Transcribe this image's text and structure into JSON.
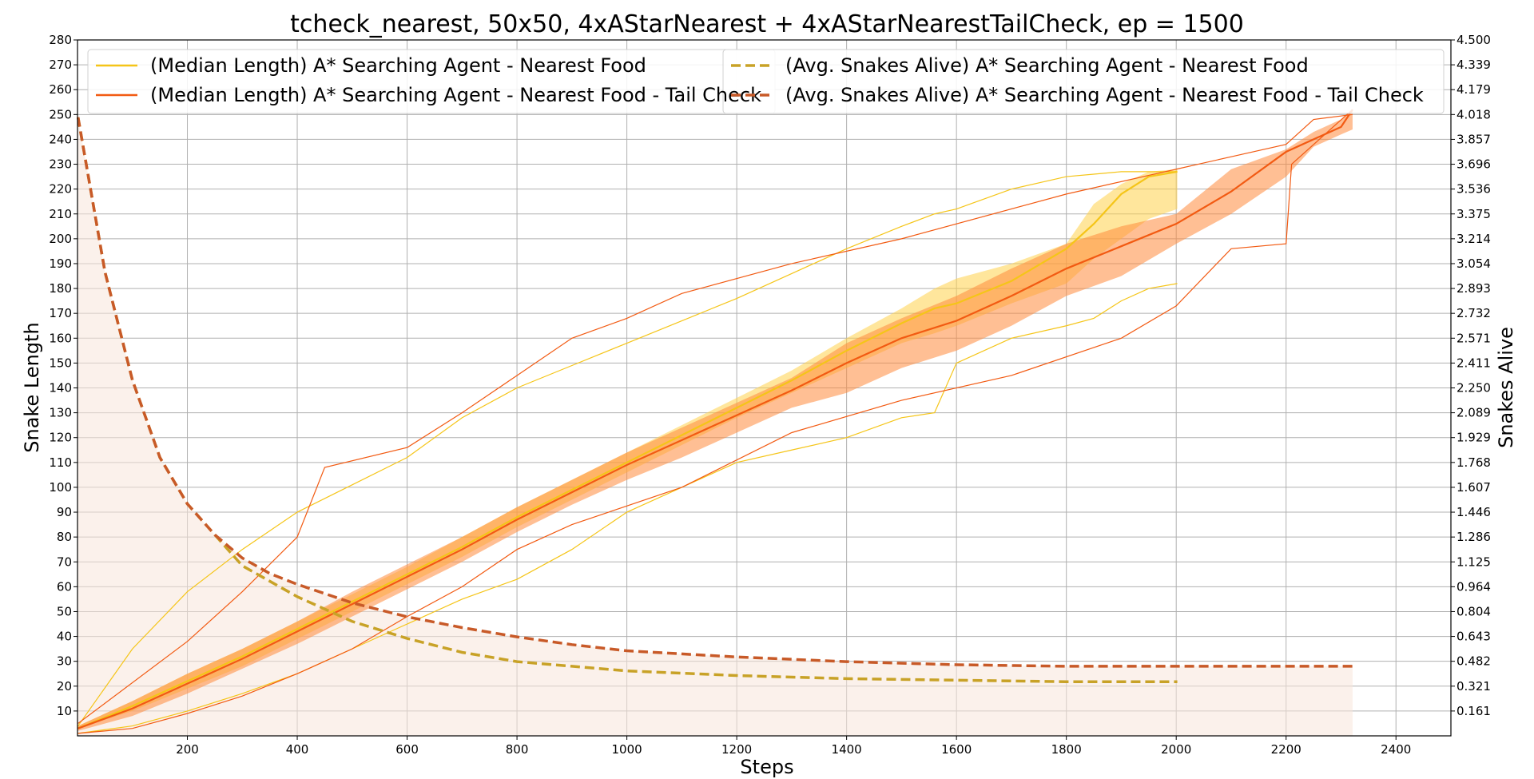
{
  "chart_data": {
    "type": "line",
    "title": "tcheck_nearest, 50x50, 4xAStarNearest + 4xAStarNearestTailCheck, ep = 1500",
    "xlabel": "Steps",
    "ylabel": "Snake Length",
    "y2label": "Snakes Alive",
    "xlim": [
      0,
      2500
    ],
    "ylim": [
      0,
      280
    ],
    "y2lim": [
      0,
      4.5
    ],
    "x_ticks": [
      200,
      400,
      600,
      800,
      1000,
      1200,
      1400,
      1600,
      1800,
      2000,
      2200,
      2400
    ],
    "y_ticks": [
      10,
      20,
      30,
      40,
      50,
      60,
      70,
      80,
      90,
      100,
      110,
      120,
      130,
      140,
      150,
      160,
      170,
      180,
      190,
      200,
      210,
      220,
      230,
      240,
      250,
      260,
      270,
      280
    ],
    "y2_ticks": [
      "0.161",
      "0.321",
      "0.482",
      "0.643",
      "0.804",
      "0.964",
      "1.125",
      "1.286",
      "1.446",
      "1.607",
      "1.768",
      "1.929",
      "2.089",
      "2.250",
      "2.411",
      "2.571",
      "2.732",
      "2.893",
      "3.054",
      "3.214",
      "3.375",
      "3.536",
      "3.696",
      "3.857",
      "4.018",
      "4.179",
      "4.339",
      "4.500"
    ],
    "grid": true,
    "legend": [
      {
        "label": "(Median Length) A* Searching Agent - Nearest Food",
        "color": "#f5c518",
        "style": "solid",
        "position": "top-left"
      },
      {
        "label": "(Median Length) A* Searching Agent - Nearest Food - Tail Check",
        "color": "#f25a12",
        "style": "solid",
        "position": "top-left"
      },
      {
        "label": "(Avg. Snakes Alive) A* Searching Agent - Nearest Food",
        "color": "#c8a227",
        "style": "dashed",
        "position": "top-right"
      },
      {
        "label": "(Avg. Snakes Alive) A* Searching Agent - Nearest Food - Tail Check",
        "color": "#c85a28",
        "style": "dashed",
        "position": "top-right"
      }
    ],
    "series": [
      {
        "name": "(Median Length) A* Searching Agent - Nearest Food",
        "axis": "left",
        "color": "#f5c518",
        "x": [
          1,
          100,
          200,
          300,
          400,
          500,
          600,
          700,
          800,
          900,
          1000,
          1100,
          1200,
          1300,
          1400,
          1500,
          1560,
          1600,
          1700,
          1800,
          1850,
          1900,
          1950,
          2002
        ],
        "median": [
          3,
          12,
          22,
          32,
          43,
          54,
          65,
          76,
          88,
          99,
          110,
          121,
          132,
          143,
          155,
          166,
          172,
          174,
          183,
          196,
          206,
          218,
          225,
          227
        ],
        "band_low": [
          3,
          10,
          19,
          28,
          39,
          50,
          61,
          72,
          84,
          95,
          106,
          117,
          128,
          138,
          148,
          158,
          162,
          165,
          174,
          182,
          192,
          200,
          208,
          212
        ],
        "band_high": [
          4,
          14,
          25,
          35,
          46,
          57,
          68,
          80,
          92,
          103,
          114,
          125,
          136,
          147,
          160,
          172,
          180,
          184,
          190,
          198,
          214,
          222,
          227,
          228
        ],
        "max": [
          4,
          35,
          58,
          75,
          90,
          101,
          112,
          128,
          140,
          149,
          158,
          167,
          176,
          186,
          196,
          205,
          210,
          212,
          220,
          225,
          226,
          227,
          227,
          227
        ],
        "min": [
          1,
          4,
          10,
          17,
          25,
          35,
          45,
          55,
          63,
          75,
          90,
          100,
          110,
          115,
          120,
          128,
          130,
          150,
          160,
          165,
          168,
          175,
          180,
          182
        ]
      },
      {
        "name": "(Median Length) A* Searching Agent - Nearest Food - Tail Check",
        "axis": "left",
        "color": "#f25a12",
        "x": [
          1,
          100,
          200,
          300,
          400,
          500,
          600,
          700,
          800,
          900,
          1000,
          1100,
          1200,
          1300,
          1400,
          1500,
          1600,
          1700,
          1800,
          1900,
          2000,
          2100,
          2200,
          2250,
          2300,
          2321
        ],
        "median": [
          3,
          11,
          21,
          31,
          42,
          53,
          64,
          75,
          87,
          98,
          109,
          119,
          129,
          139,
          150,
          160,
          167,
          177,
          188,
          197,
          206,
          219,
          235,
          240,
          245,
          252
        ],
        "band_low": [
          2,
          8,
          17,
          27,
          37,
          48,
          59,
          70,
          82,
          93,
          103,
          112,
          122,
          132,
          138,
          148,
          155,
          165,
          177,
          185,
          198,
          210,
          225,
          237,
          242,
          244
        ],
        "band_high": [
          4,
          14,
          25,
          35,
          46,
          58,
          69,
          80,
          92,
          103,
          114,
          124,
          134,
          144,
          158,
          168,
          177,
          188,
          198,
          205,
          210,
          228,
          236,
          243,
          248,
          252
        ],
        "max": [
          5,
          38,
          58,
          80,
          108,
          116,
          130,
          145,
          160,
          168,
          178,
          190,
          200,
          218,
          228,
          233,
          238,
          248,
          250
        ],
        "max_x": [
          1,
          200,
          300,
          400,
          450,
          600,
          700,
          800,
          900,
          1000,
          1100,
          1300,
          1500,
          1800,
          2000,
          2100,
          2200,
          2250,
          2321
        ],
        "min": [
          1,
          3,
          9,
          16,
          25,
          35,
          48,
          60,
          75,
          85,
          100,
          122,
          135,
          145,
          160,
          173,
          196,
          198,
          230,
          252
        ],
        "min_x": [
          1,
          100,
          200,
          300,
          400,
          500,
          600,
          700,
          800,
          900,
          1100,
          1300,
          1500,
          1700,
          1900,
          2000,
          2100,
          2200,
          2210,
          2321
        ]
      },
      {
        "name": "(Avg. Snakes Alive) A* Searching Agent - Nearest Food",
        "axis": "right",
        "color": "#c8a227",
        "dashed": true,
        "x": [
          1,
          50,
          100,
          150,
          200,
          250,
          300,
          350,
          400,
          500,
          600,
          700,
          800,
          900,
          1000,
          1200,
          1400,
          1600,
          1800,
          2002
        ],
        "values": [
          4.0,
          3.0,
          2.3,
          1.8,
          1.5,
          1.3,
          1.1,
          1.0,
          0.9,
          0.74,
          0.63,
          0.54,
          0.48,
          0.45,
          0.42,
          0.39,
          0.37,
          0.36,
          0.35,
          0.35
        ]
      },
      {
        "name": "(Avg. Snakes Alive) A* Searching Agent - Nearest Food - Tail Check",
        "axis": "right",
        "color": "#c85a28",
        "dashed": true,
        "x": [
          1,
          50,
          100,
          150,
          200,
          250,
          300,
          350,
          400,
          500,
          600,
          700,
          800,
          900,
          1000,
          1200,
          1400,
          1600,
          1800,
          2000,
          2321
        ],
        "values": [
          4.0,
          3.0,
          2.3,
          1.8,
          1.5,
          1.3,
          1.15,
          1.05,
          0.98,
          0.86,
          0.77,
          0.7,
          0.64,
          0.59,
          0.55,
          0.51,
          0.48,
          0.46,
          0.45,
          0.45,
          0.45
        ]
      }
    ]
  }
}
